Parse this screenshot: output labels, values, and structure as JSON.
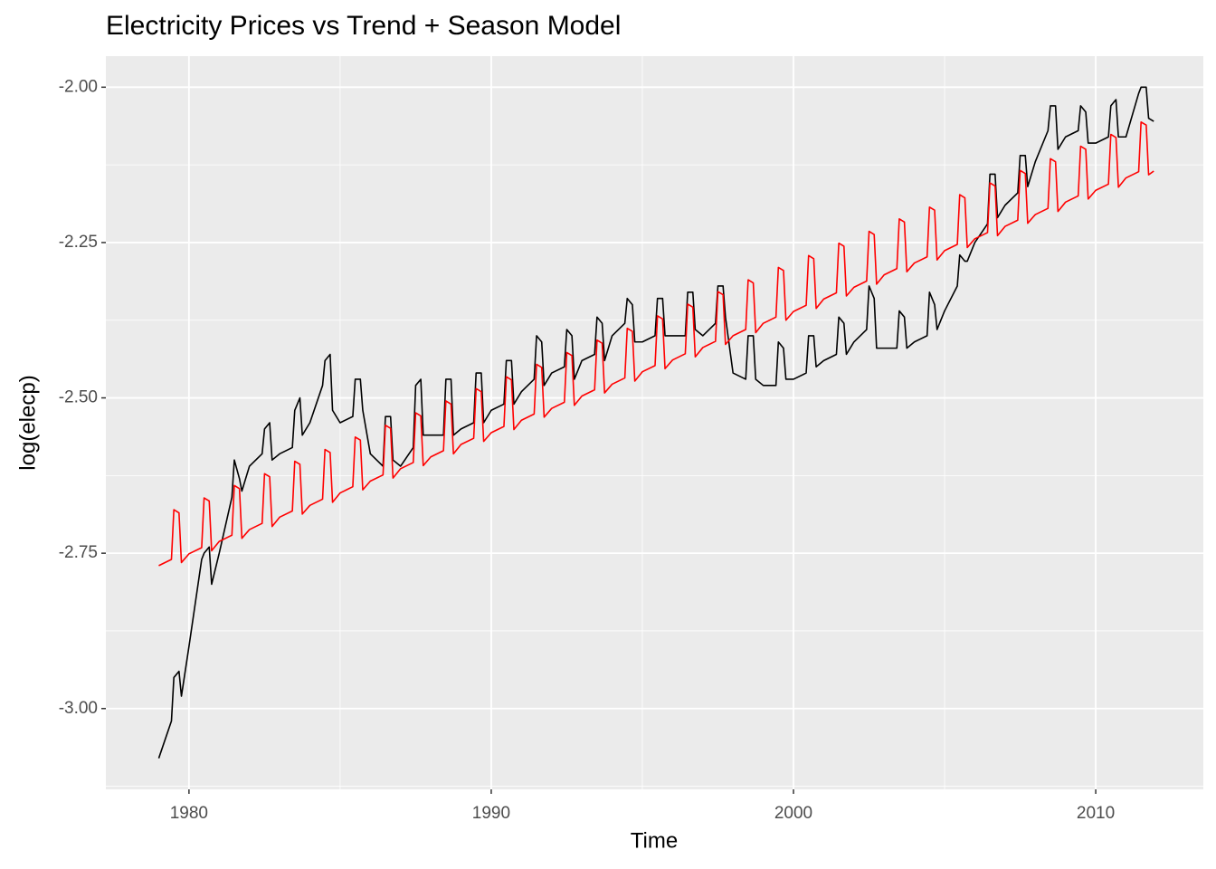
{
  "chart_data": {
    "type": "line",
    "title": "Electricity Prices vs Trend + Season Model",
    "x_label": "Time",
    "y_label": "log(elecp)",
    "xlim": [
      1977.25,
      2013.56
    ],
    "ylim": [
      -3.13,
      -1.95
    ],
    "xticks": [
      1980,
      1990,
      2000,
      2010
    ],
    "yticks": [
      {
        "value": -3,
        "label": "-3.00"
      },
      {
        "value": -2.75,
        "label": "-2.75"
      },
      {
        "value": -2.5,
        "label": "-2.50"
      },
      {
        "value": -2.25,
        "label": "-2.25"
      },
      {
        "value": -2,
        "label": "-2.00"
      }
    ],
    "grid": true,
    "x": [
      1979,
      1979.42,
      1979.5,
      1979.67,
      1979.75,
      1980,
      1980.42,
      1980.5,
      1980.67,
      1980.75,
      1981,
      1981.42,
      1981.5,
      1981.67,
      1981.75,
      1982,
      1982.42,
      1982.5,
      1982.67,
      1982.75,
      1983,
      1983.42,
      1983.5,
      1983.67,
      1983.75,
      1984,
      1984.42,
      1984.5,
      1984.67,
      1984.75,
      1985,
      1985.42,
      1985.5,
      1985.67,
      1985.75,
      1986,
      1986.42,
      1986.5,
      1986.67,
      1986.75,
      1987,
      1987.42,
      1987.5,
      1987.67,
      1987.75,
      1988,
      1988.42,
      1988.5,
      1988.67,
      1988.75,
      1989,
      1989.42,
      1989.5,
      1989.67,
      1989.75,
      1990,
      1990.42,
      1990.5,
      1990.67,
      1990.75,
      1991,
      1991.42,
      1991.5,
      1991.67,
      1991.75,
      1992,
      1992.42,
      1992.5,
      1992.67,
      1992.75,
      1993,
      1993.42,
      1993.5,
      1993.67,
      1993.75,
      1994,
      1994.42,
      1994.5,
      1994.67,
      1994.75,
      1995,
      1995.42,
      1995.5,
      1995.67,
      1995.75,
      1996,
      1996.42,
      1996.5,
      1996.67,
      1996.75,
      1997,
      1997.42,
      1997.5,
      1997.67,
      1997.75,
      1998,
      1998.42,
      1998.5,
      1998.67,
      1998.75,
      1999,
      1999.42,
      1999.5,
      1999.67,
      1999.75,
      2000,
      2000.42,
      2000.5,
      2000.67,
      2000.75,
      2001,
      2001.42,
      2001.5,
      2001.67,
      2001.75,
      2002,
      2002.42,
      2002.5,
      2002.67,
      2002.75,
      2003,
      2003.42,
      2003.5,
      2003.67,
      2003.75,
      2004,
      2004.42,
      2004.5,
      2004.67,
      2004.75,
      2005,
      2005.42,
      2005.5,
      2005.67,
      2005.75,
      2006,
      2006.42,
      2006.5,
      2006.67,
      2006.75,
      2007,
      2007.42,
      2007.5,
      2007.67,
      2007.75,
      2008,
      2008.42,
      2008.5,
      2008.67,
      2008.75,
      2009,
      2009.42,
      2009.5,
      2009.67,
      2009.75,
      2010,
      2010.42,
      2010.5,
      2010.67,
      2010.75,
      2011,
      2011.42,
      2011.5,
      2011.67,
      2011.75,
      2011.92
    ],
    "series": [
      {
        "color": "#000000",
        "values": [
          -3.08,
          -3.02,
          -2.95,
          -2.94,
          -2.98,
          -2.9,
          -2.76,
          -2.75,
          -2.74,
          -2.8,
          -2.75,
          -2.66,
          -2.6,
          -2.63,
          -2.65,
          -2.61,
          -2.59,
          -2.55,
          -2.54,
          -2.6,
          -2.59,
          -2.58,
          -2.52,
          -2.5,
          -2.56,
          -2.54,
          -2.48,
          -2.44,
          -2.43,
          -2.52,
          -2.54,
          -2.53,
          -2.47,
          -2.47,
          -2.52,
          -2.59,
          -2.61,
          -2.53,
          -2.53,
          -2.6,
          -2.61,
          -2.58,
          -2.48,
          -2.47,
          -2.56,
          -2.56,
          -2.56,
          -2.47,
          -2.47,
          -2.56,
          -2.55,
          -2.54,
          -2.46,
          -2.46,
          -2.54,
          -2.52,
          -2.51,
          -2.44,
          -2.44,
          -2.51,
          -2.49,
          -2.47,
          -2.4,
          -2.41,
          -2.48,
          -2.46,
          -2.45,
          -2.39,
          -2.4,
          -2.47,
          -2.44,
          -2.43,
          -2.37,
          -2.38,
          -2.44,
          -2.4,
          -2.38,
          -2.34,
          -2.35,
          -2.41,
          -2.41,
          -2.4,
          -2.34,
          -2.34,
          -2.4,
          -2.4,
          -2.4,
          -2.33,
          -2.33,
          -2.39,
          -2.4,
          -2.38,
          -2.32,
          -2.32,
          -2.37,
          -2.46,
          -2.47,
          -2.4,
          -2.4,
          -2.47,
          -2.48,
          -2.48,
          -2.41,
          -2.42,
          -2.47,
          -2.47,
          -2.46,
          -2.4,
          -2.4,
          -2.45,
          -2.44,
          -2.43,
          -2.37,
          -2.38,
          -2.43,
          -2.41,
          -2.39,
          -2.32,
          -2.34,
          -2.42,
          -2.42,
          -2.42,
          -2.36,
          -2.37,
          -2.42,
          -2.41,
          -2.4,
          -2.33,
          -2.35,
          -2.39,
          -2.36,
          -2.32,
          -2.27,
          -2.28,
          -2.28,
          -2.25,
          -2.22,
          -2.14,
          -2.14,
          -2.21,
          -2.19,
          -2.17,
          -2.11,
          -2.11,
          -2.16,
          -2.12,
          -2.07,
          -2.03,
          -2.03,
          -2.1,
          -2.08,
          -2.07,
          -2.03,
          -2.04,
          -2.09,
          -2.09,
          -2.08,
          -2.03,
          -2.02,
          -2.08,
          -2.08,
          -2.01,
          -2,
          -2,
          -2.05,
          -2.055
        ]
      },
      {
        "color": "#ff0000",
        "values": [
          -2.77,
          -2.76,
          -2.68,
          -2.685,
          -2.765,
          -2.751,
          -2.741,
          -2.661,
          -2.666,
          -2.746,
          -2.731,
          -2.721,
          -2.641,
          -2.646,
          -2.726,
          -2.712,
          -2.702,
          -2.622,
          -2.627,
          -2.707,
          -2.692,
          -2.682,
          -2.602,
          -2.607,
          -2.687,
          -2.673,
          -2.663,
          -2.583,
          -2.588,
          -2.668,
          -2.653,
          -2.643,
          -2.563,
          -2.568,
          -2.648,
          -2.634,
          -2.624,
          -2.544,
          -2.549,
          -2.629,
          -2.614,
          -2.604,
          -2.524,
          -2.529,
          -2.609,
          -2.595,
          -2.585,
          -2.505,
          -2.51,
          -2.59,
          -2.575,
          -2.565,
          -2.485,
          -2.49,
          -2.57,
          -2.556,
          -2.546,
          -2.466,
          -2.471,
          -2.551,
          -2.536,
          -2.526,
          -2.446,
          -2.451,
          -2.531,
          -2.517,
          -2.507,
          -2.427,
          -2.432,
          -2.512,
          -2.497,
          -2.487,
          -2.407,
          -2.412,
          -2.492,
          -2.478,
          -2.468,
          -2.388,
          -2.393,
          -2.473,
          -2.458,
          -2.448,
          -2.368,
          -2.373,
          -2.453,
          -2.439,
          -2.429,
          -2.349,
          -2.354,
          -2.434,
          -2.419,
          -2.409,
          -2.329,
          -2.334,
          -2.414,
          -2.4,
          -2.39,
          -2.31,
          -2.315,
          -2.395,
          -2.38,
          -2.37,
          -2.29,
          -2.295,
          -2.375,
          -2.361,
          -2.351,
          -2.271,
          -2.276,
          -2.356,
          -2.341,
          -2.331,
          -2.251,
          -2.256,
          -2.336,
          -2.322,
          -2.312,
          -2.232,
          -2.237,
          -2.317,
          -2.302,
          -2.292,
          -2.212,
          -2.217,
          -2.297,
          -2.283,
          -2.273,
          -2.193,
          -2.198,
          -2.278,
          -2.263,
          -2.253,
          -2.173,
          -2.178,
          -2.258,
          -2.244,
          -2.234,
          -2.154,
          -2.159,
          -2.239,
          -2.224,
          -2.214,
          -2.134,
          -2.139,
          -2.219,
          -2.205,
          -2.195,
          -2.115,
          -2.12,
          -2.2,
          -2.185,
          -2.175,
          -2.095,
          -2.1,
          -2.18,
          -2.166,
          -2.156,
          -2.076,
          -2.081,
          -2.161,
          -2.146,
          -2.136,
          -2.056,
          -2.061,
          -2.141,
          -2.135
        ]
      }
    ]
  }
}
